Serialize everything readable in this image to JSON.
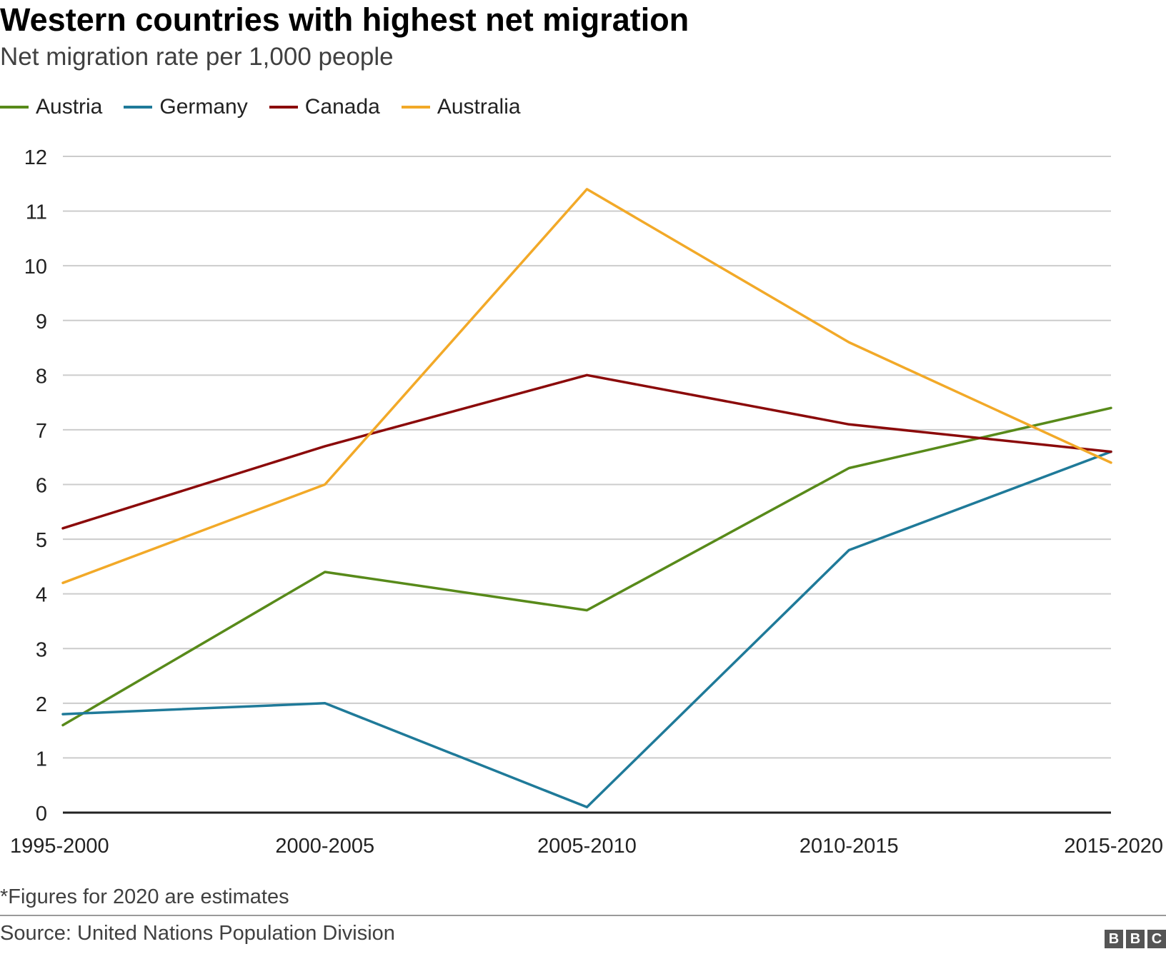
{
  "title": "Western countries with highest net migration",
  "subtitle": "Net migration rate per 1,000 people",
  "note": "*Figures for 2020 are estimates",
  "source": "Source: United Nations Population Division",
  "logo": [
    "B",
    "B",
    "C"
  ],
  "chart_data": {
    "type": "line",
    "categories": [
      "1995-2000",
      "2000-2005",
      "2005-2010",
      "2010-2015",
      "2015-2020"
    ],
    "ylim": [
      0,
      12
    ],
    "yticks": [
      "0",
      "1",
      "2",
      "3",
      "4",
      "5",
      "6",
      "7",
      "8",
      "9",
      "10",
      "11",
      "12"
    ],
    "grid": true,
    "legend_position": "top-left",
    "series": [
      {
        "name": "Austria",
        "color": "#588a1a",
        "values": [
          1.6,
          4.4,
          3.7,
          6.3,
          7.4
        ]
      },
      {
        "name": "Germany",
        "color": "#1f7a99",
        "values": [
          1.8,
          2.0,
          0.1,
          4.8,
          6.6
        ]
      },
      {
        "name": "Canada",
        "color": "#8b0a0a",
        "values": [
          5.2,
          6.7,
          8.0,
          7.1,
          6.6
        ]
      },
      {
        "name": "Australia",
        "color": "#f2a928",
        "values": [
          4.2,
          6.0,
          11.4,
          8.6,
          6.4
        ]
      }
    ]
  }
}
